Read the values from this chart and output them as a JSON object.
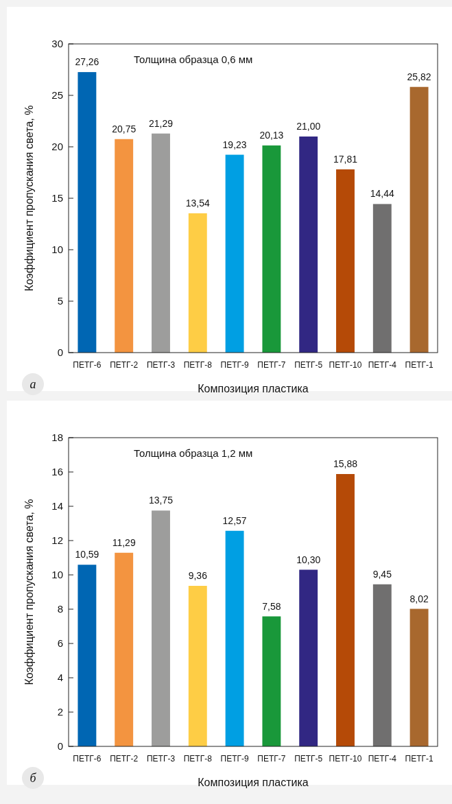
{
  "chart_data": [
    {
      "type": "bar",
      "xlabel": "Композиция пластика",
      "ylabel": "Коэффициент пропускания света, %",
      "categories": [
        "ПЕТГ-6",
        "ПЕТГ-2",
        "ПЕТГ-3",
        "ПЕТГ-8",
        "ПЕТГ-9",
        "ПЕТГ-7",
        "ПЕТГ-5",
        "ПЕТГ-10",
        "ПЕТГ-4",
        "ПЕТГ-1"
      ],
      "values": [
        27.26,
        20.75,
        21.29,
        13.54,
        19.23,
        20.13,
        21.0,
        17.81,
        14.44,
        25.82
      ],
      "value_labels": [
        "27,26",
        "20,75",
        "21,29",
        "13,54",
        "19,23",
        "20,13",
        "21,00",
        "17,81",
        "14,44",
        "25,82"
      ],
      "colors": [
        "#0066b3",
        "#f39440",
        "#9d9d9c",
        "#fecd45",
        "#009fe3",
        "#19983a",
        "#312783",
        "#b54a07",
        "#706f6f",
        "#a8682e"
      ],
      "ylim": [
        0,
        30
      ],
      "yticks": [
        0,
        5,
        10,
        15,
        20,
        25,
        30
      ],
      "grid": false,
      "annotations": [
        "Толщина образца 0,6 мм",
        "а"
      ]
    },
    {
      "type": "bar",
      "xlabel": "Композиция пластика",
      "ylabel": "Коэффициент пропускания света, %",
      "categories": [
        "ПЕТГ-6",
        "ПЕТГ-2",
        "ПЕТГ-3",
        "ПЕТГ-8",
        "ПЕТГ-9",
        "ПЕТГ-7",
        "ПЕТГ-5",
        "ПЕТГ-10",
        "ПЕТГ-4",
        "ПЕТГ-1"
      ],
      "values": [
        10.59,
        11.29,
        13.75,
        9.36,
        12.57,
        7.58,
        10.3,
        15.88,
        9.45,
        8.02
      ],
      "value_labels": [
        "10,59",
        "11,29",
        "13,75",
        "9,36",
        "12,57",
        "7,58",
        "10,30",
        "15,88",
        "9,45",
        "8,02"
      ],
      "colors": [
        "#0066b3",
        "#f39440",
        "#9d9d9c",
        "#fecd45",
        "#009fe3",
        "#19983a",
        "#312783",
        "#b54a07",
        "#706f6f",
        "#a8682e"
      ],
      "ylim": [
        0,
        18
      ],
      "yticks": [
        0,
        2,
        4,
        6,
        8,
        10,
        12,
        14,
        16,
        18
      ],
      "grid": false,
      "annotations": [
        "Толщина образца 1,2 мм",
        "б"
      ]
    }
  ]
}
